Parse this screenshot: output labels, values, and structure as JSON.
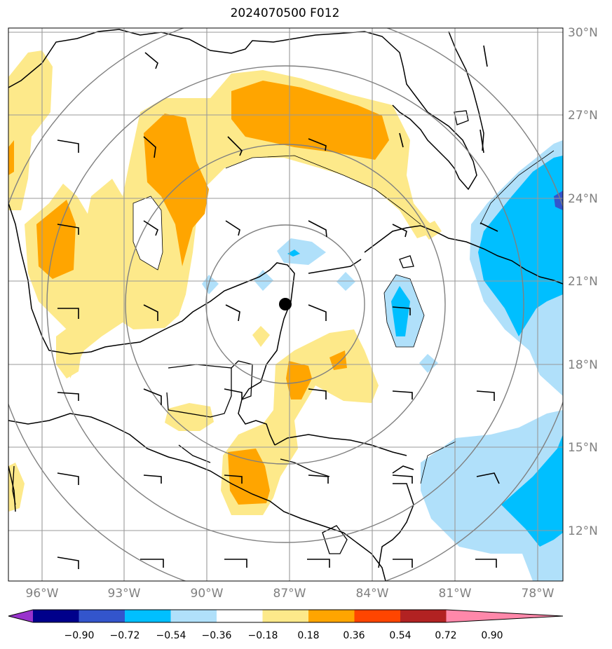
{
  "title": "2024070500 F012",
  "latitude_labels": [
    "30°N",
    "27°N",
    "24°N",
    "21°N",
    "18°N",
    "15°N",
    "12°N"
  ],
  "longitude_labels": [
    "96°W",
    "93°W",
    "90°W",
    "87°W",
    "84°W",
    "81°W",
    "78°W"
  ],
  "colorbar": {
    "tick_labels": [
      "−0.90",
      "−0.72",
      "−0.54",
      "−0.36",
      "−0.18",
      "0.18",
      "0.36",
      "0.54",
      "0.72",
      "0.90"
    ],
    "colors": [
      "#9933cc",
      "#00008b",
      "#3355cc",
      "#00bfff",
      "#b0e0fa",
      "#ffffff",
      "#fde98a",
      "#ffa500",
      "#ff4500",
      "#b22222",
      "#ff88aa"
    ]
  },
  "center_marker": "storm-center-dot"
}
